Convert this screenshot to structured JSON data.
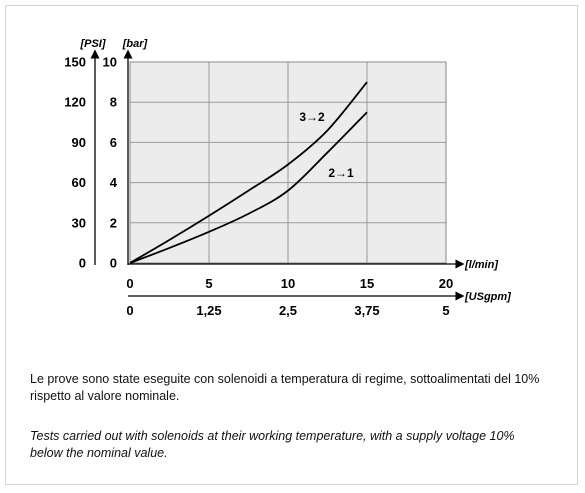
{
  "chart_data": {
    "type": "line",
    "plot_background": "#ececec",
    "x_primary": {
      "label": "[l/min]",
      "ticks": [
        "0",
        "5",
        "10",
        "15",
        "20"
      ],
      "lim": [
        0,
        20
      ]
    },
    "x_secondary": {
      "label": "[USgpm]",
      "ticks": [
        "0",
        "1,25",
        "2,5",
        "3,75",
        "5"
      ]
    },
    "y_primary": {
      "label": "[bar]",
      "ticks": [
        "0",
        "2",
        "4",
        "6",
        "8",
        "10"
      ],
      "lim": [
        0,
        10
      ]
    },
    "y_secondary": {
      "label": "[PSI]",
      "ticks": [
        "0",
        "30",
        "60",
        "90",
        "120",
        "150"
      ]
    },
    "grid": true,
    "series": [
      {
        "name": "3→2",
        "color": "#000000",
        "x": [
          0,
          2.5,
          5,
          7.5,
          10,
          12.5,
          15
        ],
        "y": [
          0,
          1.15,
          2.35,
          3.6,
          4.9,
          6.6,
          9.0
        ]
      },
      {
        "name": "2→1",
        "color": "#000000",
        "x": [
          0,
          2.5,
          5,
          7.5,
          10,
          12.5,
          15
        ],
        "y": [
          0,
          0.75,
          1.55,
          2.45,
          3.6,
          5.5,
          7.5
        ]
      }
    ]
  },
  "captions": {
    "italian": "Le prove sono state eseguite con solenoidi a temperatura di regime, sottoalimentati del 10% rispetto al valore nominale.",
    "english": "Tests carried out with solenoids at their working temperature, with a supply voltage 10% below the nominal value."
  }
}
